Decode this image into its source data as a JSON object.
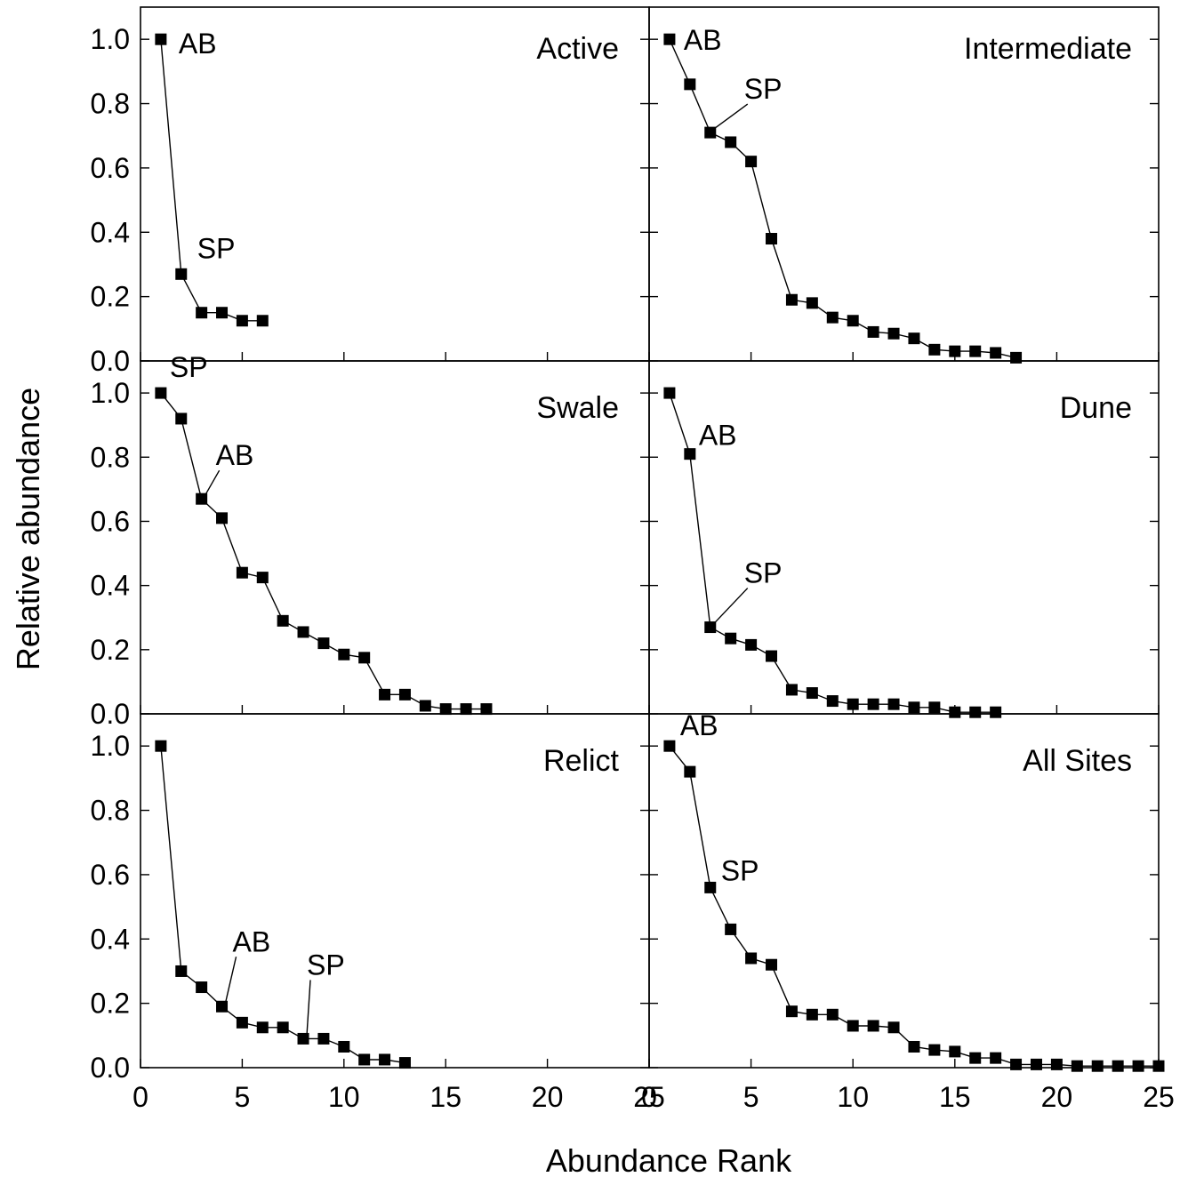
{
  "chart_data": {
    "type": "line",
    "layout": "3x2 panels, shared axes",
    "xlabel": "Abundance Rank",
    "ylabel": "Relative abundance",
    "xlim": [
      0,
      25
    ],
    "ylim": [
      0,
      1.1
    ],
    "xticks": [
      0,
      5,
      10,
      15,
      20,
      25
    ],
    "yticks": [
      0.0,
      0.2,
      0.4,
      0.6,
      0.8,
      1.0
    ],
    "x_tick_labels": [
      "0",
      "5",
      "10",
      "15",
      "20",
      "25"
    ],
    "y_tick_labels": [
      "0.0",
      "0.2",
      "0.4",
      "0.6",
      "0.8",
      "1.0"
    ],
    "grid": false,
    "marker": "filled square",
    "panels": [
      {
        "title": "Active",
        "values": [
          1.0,
          0.27,
          0.15,
          0.15,
          0.125,
          0.125
        ],
        "annotations": [
          {
            "text": "AB",
            "rank": 1
          },
          {
            "text": "SP",
            "rank": 2
          }
        ]
      },
      {
        "title": "Intermediate",
        "values": [
          1.0,
          0.86,
          0.71,
          0.68,
          0.62,
          0.38,
          0.19,
          0.18,
          0.135,
          0.125,
          0.09,
          0.085,
          0.07,
          0.035,
          0.03,
          0.03,
          0.025,
          0.01
        ],
        "annotations": [
          {
            "text": "AB",
            "rank": 1
          },
          {
            "text": "SP",
            "rank": 3
          }
        ]
      },
      {
        "title": "Swale",
        "values": [
          1.0,
          0.92,
          0.67,
          0.61,
          0.44,
          0.425,
          0.29,
          0.255,
          0.22,
          0.185,
          0.175,
          0.06,
          0.06,
          0.025,
          0.015,
          0.015,
          0.015
        ],
        "annotations": [
          {
            "text": "SP",
            "rank": 1
          },
          {
            "text": "AB",
            "rank": 3
          }
        ]
      },
      {
        "title": "Dune",
        "values": [
          1.0,
          0.81,
          0.27,
          0.235,
          0.215,
          0.18,
          0.075,
          0.065,
          0.04,
          0.03,
          0.03,
          0.03,
          0.02,
          0.02,
          0.005,
          0.005,
          0.005
        ],
        "annotations": [
          {
            "text": "AB",
            "rank": 2
          },
          {
            "text": "SP",
            "rank": 3
          }
        ]
      },
      {
        "title": "Relict",
        "values": [
          1.0,
          0.3,
          0.25,
          0.19,
          0.14,
          0.125,
          0.125,
          0.09,
          0.09,
          0.065,
          0.025,
          0.025,
          0.015
        ],
        "annotations": [
          {
            "text": "AB",
            "rank": 4
          },
          {
            "text": "SP",
            "rank": 8
          }
        ]
      },
      {
        "title": "All Sites",
        "values": [
          1.0,
          0.92,
          0.56,
          0.43,
          0.34,
          0.32,
          0.175,
          0.165,
          0.165,
          0.13,
          0.13,
          0.125,
          0.065,
          0.055,
          0.05,
          0.03,
          0.03,
          0.01,
          0.01,
          0.01,
          0.005,
          0.005,
          0.005,
          0.005,
          0.005
        ],
        "annotations": [
          {
            "text": "AB",
            "rank": 1
          },
          {
            "text": "SP",
            "rank": 3
          }
        ]
      }
    ]
  }
}
